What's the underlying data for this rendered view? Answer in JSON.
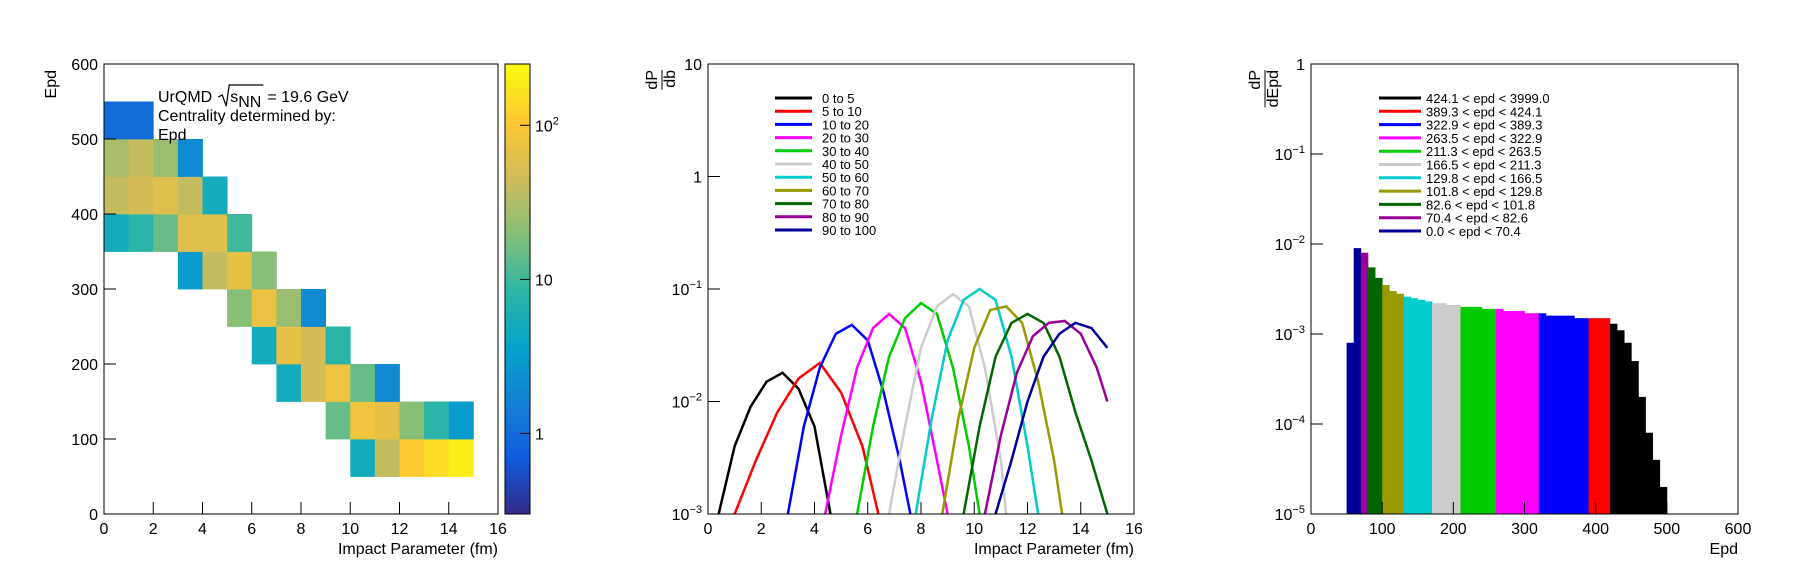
{
  "chart_data": [
    {
      "type": "heatmap",
      "xlabel": "Impact Parameter (fm)",
      "ylabel": "Epd",
      "annotation": {
        "parts": [
          "UrQMD",
          "s",
          "NN",
          "= 19.6 GeV"
        ],
        "lines": [
          "Centrality determined by:",
          "Epd"
        ]
      },
      "xlim": [
        0,
        16
      ],
      "xticks": [
        0,
        2,
        4,
        6,
        8,
        10,
        12,
        14,
        16
      ],
      "ylim": [
        0,
        600
      ],
      "yticks": [
        0,
        100,
        200,
        300,
        400,
        500,
        600
      ],
      "zlim": [
        0.3,
        250
      ],
      "zticks": [
        1,
        10,
        {
          "value": 100,
          "label": "10",
          "exponent": "2"
        }
      ],
      "zlog": true,
      "x_bins": [
        0,
        1,
        2,
        3,
        4,
        5,
        6,
        7,
        8,
        9,
        10,
        11,
        12,
        13,
        14,
        15
      ],
      "y_bins": [
        0,
        50,
        100,
        150,
        200,
        250,
        300,
        350,
        400,
        450,
        500,
        550,
        600
      ],
      "z": [
        [
          null,
          null,
          null,
          null,
          null,
          null,
          null,
          5,
          40,
          30,
          1,
          null
        ],
        [
          null,
          null,
          null,
          null,
          null,
          null,
          null,
          8,
          50,
          40,
          1,
          null
        ],
        [
          null,
          null,
          null,
          null,
          null,
          null,
          null,
          15,
          60,
          25,
          null,
          null
        ],
        [
          null,
          null,
          null,
          null,
          null,
          null,
          3,
          60,
          40,
          2,
          null,
          null
        ],
        [
          null,
          null,
          null,
          null,
          null,
          null,
          40,
          60,
          5,
          null,
          null,
          null
        ],
        [
          null,
          null,
          null,
          null,
          null,
          20,
          70,
          10,
          null,
          null,
          null,
          null
        ],
        [
          null,
          null,
          null,
          null,
          5,
          75,
          20,
          null,
          null,
          null,
          null,
          null
        ],
        [
          null,
          null,
          null,
          5,
          70,
          25,
          null,
          null,
          null,
          null,
          null,
          null
        ],
        [
          null,
          null,
          null,
          50,
          50,
          2,
          null,
          null,
          null,
          null,
          null,
          null
        ],
        [
          null,
          null,
          15,
          80,
          8,
          null,
          null,
          null,
          null,
          null,
          null,
          null
        ],
        [
          null,
          5,
          85,
          15,
          null,
          null,
          null,
          null,
          null,
          null,
          null,
          null
        ],
        [
          null,
          40,
          70,
          2,
          null,
          null,
          null,
          null,
          null,
          null,
          null,
          null
        ],
        [
          null,
          110,
          20,
          null,
          null,
          null,
          null,
          null,
          null,
          null,
          null,
          null
        ],
        [
          null,
          150,
          8,
          null,
          null,
          null,
          null,
          null,
          null,
          null,
          null,
          null
        ],
        [
          null,
          200,
          3,
          null,
          null,
          null,
          null,
          null,
          null,
          null,
          null,
          null
        ]
      ]
    },
    {
      "type": "line",
      "xlabel": "Impact Parameter (fm)",
      "ylabel": {
        "numerator": "dP",
        "denominator": "db"
      },
      "xlim": [
        0,
        16
      ],
      "xticks": [
        0,
        2,
        4,
        6,
        8,
        10,
        12,
        14,
        16
      ],
      "ylim": [
        0.001,
        10
      ],
      "ylog": true,
      "yticks": [
        {
          "value": 0.001,
          "label": "10",
          "exponent": "−3"
        },
        {
          "value": 0.01,
          "label": "10",
          "exponent": "−2"
        },
        {
          "value": 0.1,
          "label": "10",
          "exponent": "−1"
        },
        1,
        10
      ],
      "series": [
        {
          "name": "0 to 5",
          "color": "#000000",
          "x": [
            0.4,
            1.0,
            1.6,
            2.2,
            2.8,
            3.4,
            4.0,
            4.6
          ],
          "values": [
            0.001,
            0.004,
            0.009,
            0.015,
            0.018,
            0.013,
            0.006,
            0.001
          ]
        },
        {
          "name": "5 to 10",
          "color": "#ff0000",
          "x": [
            1.0,
            1.8,
            2.6,
            3.4,
            4.2,
            5.0,
            5.8,
            6.4
          ],
          "values": [
            0.001,
            0.003,
            0.008,
            0.016,
            0.022,
            0.012,
            0.004,
            0.001
          ]
        },
        {
          "name": "10 to 20",
          "color": "#0000ff",
          "x": [
            3.0,
            3.6,
            4.2,
            4.8,
            5.4,
            6.0,
            6.6,
            7.2,
            7.6
          ],
          "values": [
            0.001,
            0.006,
            0.02,
            0.04,
            0.048,
            0.035,
            0.012,
            0.003,
            0.001
          ]
        },
        {
          "name": "20 to 30",
          "color": "#ff00ff",
          "x": [
            4.4,
            5.0,
            5.6,
            6.2,
            6.8,
            7.4,
            8.0,
            8.6,
            9.0
          ],
          "values": [
            0.001,
            0.005,
            0.02,
            0.045,
            0.06,
            0.045,
            0.015,
            0.003,
            0.001
          ]
        },
        {
          "name": "30 to 40",
          "color": "#00cc00",
          "x": [
            5.6,
            6.2,
            6.8,
            7.4,
            8.0,
            8.6,
            9.2,
            9.8,
            10.2
          ],
          "values": [
            0.001,
            0.006,
            0.025,
            0.055,
            0.075,
            0.06,
            0.02,
            0.004,
            0.001
          ]
        },
        {
          "name": "40 to 50",
          "color": "#cccccc",
          "x": [
            6.8,
            7.4,
            8.0,
            8.6,
            9.2,
            9.8,
            10.4,
            11.0,
            11.2
          ],
          "values": [
            0.001,
            0.006,
            0.03,
            0.07,
            0.09,
            0.07,
            0.02,
            0.003,
            0.001
          ]
        },
        {
          "name": "50 to 60",
          "color": "#00cccc",
          "x": [
            7.8,
            8.4,
            9.0,
            9.6,
            10.2,
            10.8,
            11.4,
            12.0,
            12.4
          ],
          "values": [
            0.001,
            0.007,
            0.035,
            0.08,
            0.1,
            0.08,
            0.025,
            0.004,
            0.001
          ]
        },
        {
          "name": "60 to 70",
          "color": "#999900",
          "x": [
            8.8,
            9.4,
            10.0,
            10.6,
            11.2,
            11.8,
            12.4,
            13.0,
            13.3
          ],
          "values": [
            0.001,
            0.007,
            0.03,
            0.065,
            0.07,
            0.05,
            0.015,
            0.003,
            0.001
          ]
        },
        {
          "name": "70 to 80",
          "color": "#006600",
          "x": [
            9.6,
            10.2,
            10.8,
            11.4,
            12.0,
            12.6,
            13.2,
            13.8,
            14.4,
            15.0
          ],
          "values": [
            0.001,
            0.006,
            0.025,
            0.05,
            0.06,
            0.05,
            0.025,
            0.008,
            0.003,
            0.001
          ]
        },
        {
          "name": "80 to 90",
          "color": "#990099",
          "x": [
            10.4,
            11.0,
            11.6,
            12.2,
            12.8,
            13.4,
            14.0,
            14.6,
            15.0
          ],
          "values": [
            0.001,
            0.005,
            0.018,
            0.038,
            0.05,
            0.052,
            0.04,
            0.02,
            0.01
          ]
        },
        {
          "name": "90 to 100",
          "color": "#000099",
          "x": [
            10.8,
            11.4,
            12.0,
            12.6,
            13.2,
            13.8,
            14.4,
            15.0
          ],
          "values": [
            0.001,
            0.003,
            0.01,
            0.025,
            0.04,
            0.05,
            0.045,
            0.03
          ]
        }
      ]
    },
    {
      "type": "histogram",
      "xlabel": "Epd",
      "ylabel": {
        "numerator": "dP",
        "denominator": "dEpd"
      },
      "xlim": [
        0,
        600
      ],
      "xticks": [
        0,
        100,
        200,
        300,
        400,
        500,
        600
      ],
      "ylim": [
        1e-05,
        1
      ],
      "ylog": true,
      "yticks": [
        {
          "value": 1e-05,
          "label": "10",
          "exponent": "−5"
        },
        {
          "value": 0.0001,
          "label": "10",
          "exponent": "−4"
        },
        {
          "value": 0.001,
          "label": "10",
          "exponent": "−3"
        },
        {
          "value": 0.01,
          "label": "10",
          "exponent": "−2"
        },
        {
          "value": 0.1,
          "label": "10",
          "exponent": "−1"
        },
        1
      ],
      "bins": [
        50,
        60,
        70,
        80,
        90,
        100,
        110,
        120,
        130,
        140,
        150,
        160,
        170,
        180,
        190,
        200,
        210,
        220,
        230,
        240,
        250,
        260,
        270,
        280,
        290,
        300,
        310,
        320,
        330,
        340,
        350,
        360,
        370,
        380,
        390,
        400,
        410,
        420,
        430,
        440,
        450,
        460,
        470,
        480,
        490,
        500,
        510
      ],
      "values": [
        0.0008,
        0.009,
        0.008,
        0.0055,
        0.0042,
        0.0035,
        0.003,
        0.0028,
        0.0026,
        0.0025,
        0.0024,
        0.0023,
        0.0022,
        0.0022,
        0.0021,
        0.0021,
        0.002,
        0.002,
        0.002,
        0.0019,
        0.0019,
        0.0019,
        0.0018,
        0.0018,
        0.0018,
        0.0017,
        0.0017,
        0.0017,
        0.0016,
        0.0016,
        0.0016,
        0.0016,
        0.0015,
        0.0015,
        0.0015,
        0.0015,
        0.0015,
        0.0013,
        0.0011,
        0.0008,
        0.0005,
        0.0002,
        8e-05,
        4e-05,
        2e-05,
        1e-05
      ],
      "series": [
        {
          "name": "424.1 < epd < 3999.0",
          "color": "#000000",
          "range": [
            424.1,
            3999.0
          ]
        },
        {
          "name": "389.3 < epd < 424.1",
          "color": "#ff0000",
          "range": [
            389.3,
            424.1
          ]
        },
        {
          "name": "322.9 < epd < 389.3",
          "color": "#0000ff",
          "range": [
            322.9,
            389.3
          ]
        },
        {
          "name": "263.5 < epd < 322.9",
          "color": "#ff00ff",
          "range": [
            263.5,
            322.9
          ]
        },
        {
          "name": "211.3 < epd < 263.5",
          "color": "#00cc00",
          "range": [
            211.3,
            263.5
          ]
        },
        {
          "name": "166.5 < epd < 211.3",
          "color": "#cccccc",
          "range": [
            166.5,
            211.3
          ]
        },
        {
          "name": "129.8 < epd < 166.5",
          "color": "#00cccc",
          "range": [
            129.8,
            166.5
          ]
        },
        {
          "name": "101.8 < epd < 129.8",
          "color": "#999900",
          "range": [
            101.8,
            129.8
          ]
        },
        {
          "name": "82.6 < epd < 101.8",
          "color": "#006600",
          "range": [
            82.6,
            101.8
          ]
        },
        {
          "name": "70.4 < epd < 82.6",
          "color": "#990099",
          "range": [
            70.4,
            82.6
          ]
        },
        {
          "name": "0.0 < epd < 70.4",
          "color": "#000099",
          "range": [
            0.0,
            70.4
          ]
        }
      ]
    }
  ]
}
